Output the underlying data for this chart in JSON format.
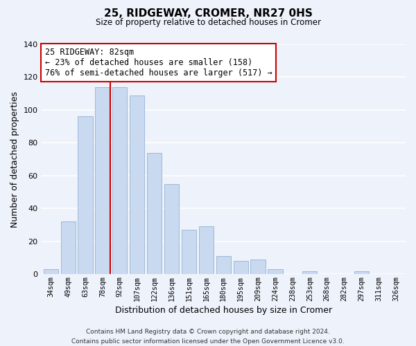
{
  "title": "25, RIDGEWAY, CROMER, NR27 0HS",
  "subtitle": "Size of property relative to detached houses in Cromer",
  "xlabel": "Distribution of detached houses by size in Cromer",
  "ylabel": "Number of detached properties",
  "categories": [
    "34sqm",
    "49sqm",
    "63sqm",
    "78sqm",
    "92sqm",
    "107sqm",
    "122sqm",
    "136sqm",
    "151sqm",
    "165sqm",
    "180sqm",
    "195sqm",
    "209sqm",
    "224sqm",
    "238sqm",
    "253sqm",
    "268sqm",
    "282sqm",
    "297sqm",
    "311sqm",
    "326sqm"
  ],
  "values": [
    3,
    32,
    96,
    114,
    114,
    109,
    74,
    55,
    27,
    29,
    11,
    8,
    9,
    3,
    0,
    2,
    0,
    0,
    2,
    0,
    0
  ],
  "bar_color": "#c8d9f0",
  "bar_edge_color": "#a0b8d8",
  "vline_index": 3,
  "vline_color": "#cc0000",
  "annotation_lines": [
    "25 RIDGEWAY: 82sqm",
    "← 23% of detached houses are smaller (158)",
    "76% of semi-detached houses are larger (517) →"
  ],
  "annotation_box_color": "#ffffff",
  "annotation_box_edge": "#cc0000",
  "ylim": [
    0,
    140
  ],
  "yticks": [
    0,
    20,
    40,
    60,
    80,
    100,
    120,
    140
  ],
  "footer_line1": "Contains HM Land Registry data © Crown copyright and database right 2024.",
  "footer_line2": "Contains public sector information licensed under the Open Government Licence v3.0.",
  "background_color": "#eef2fb",
  "grid_color": "#ffffff"
}
